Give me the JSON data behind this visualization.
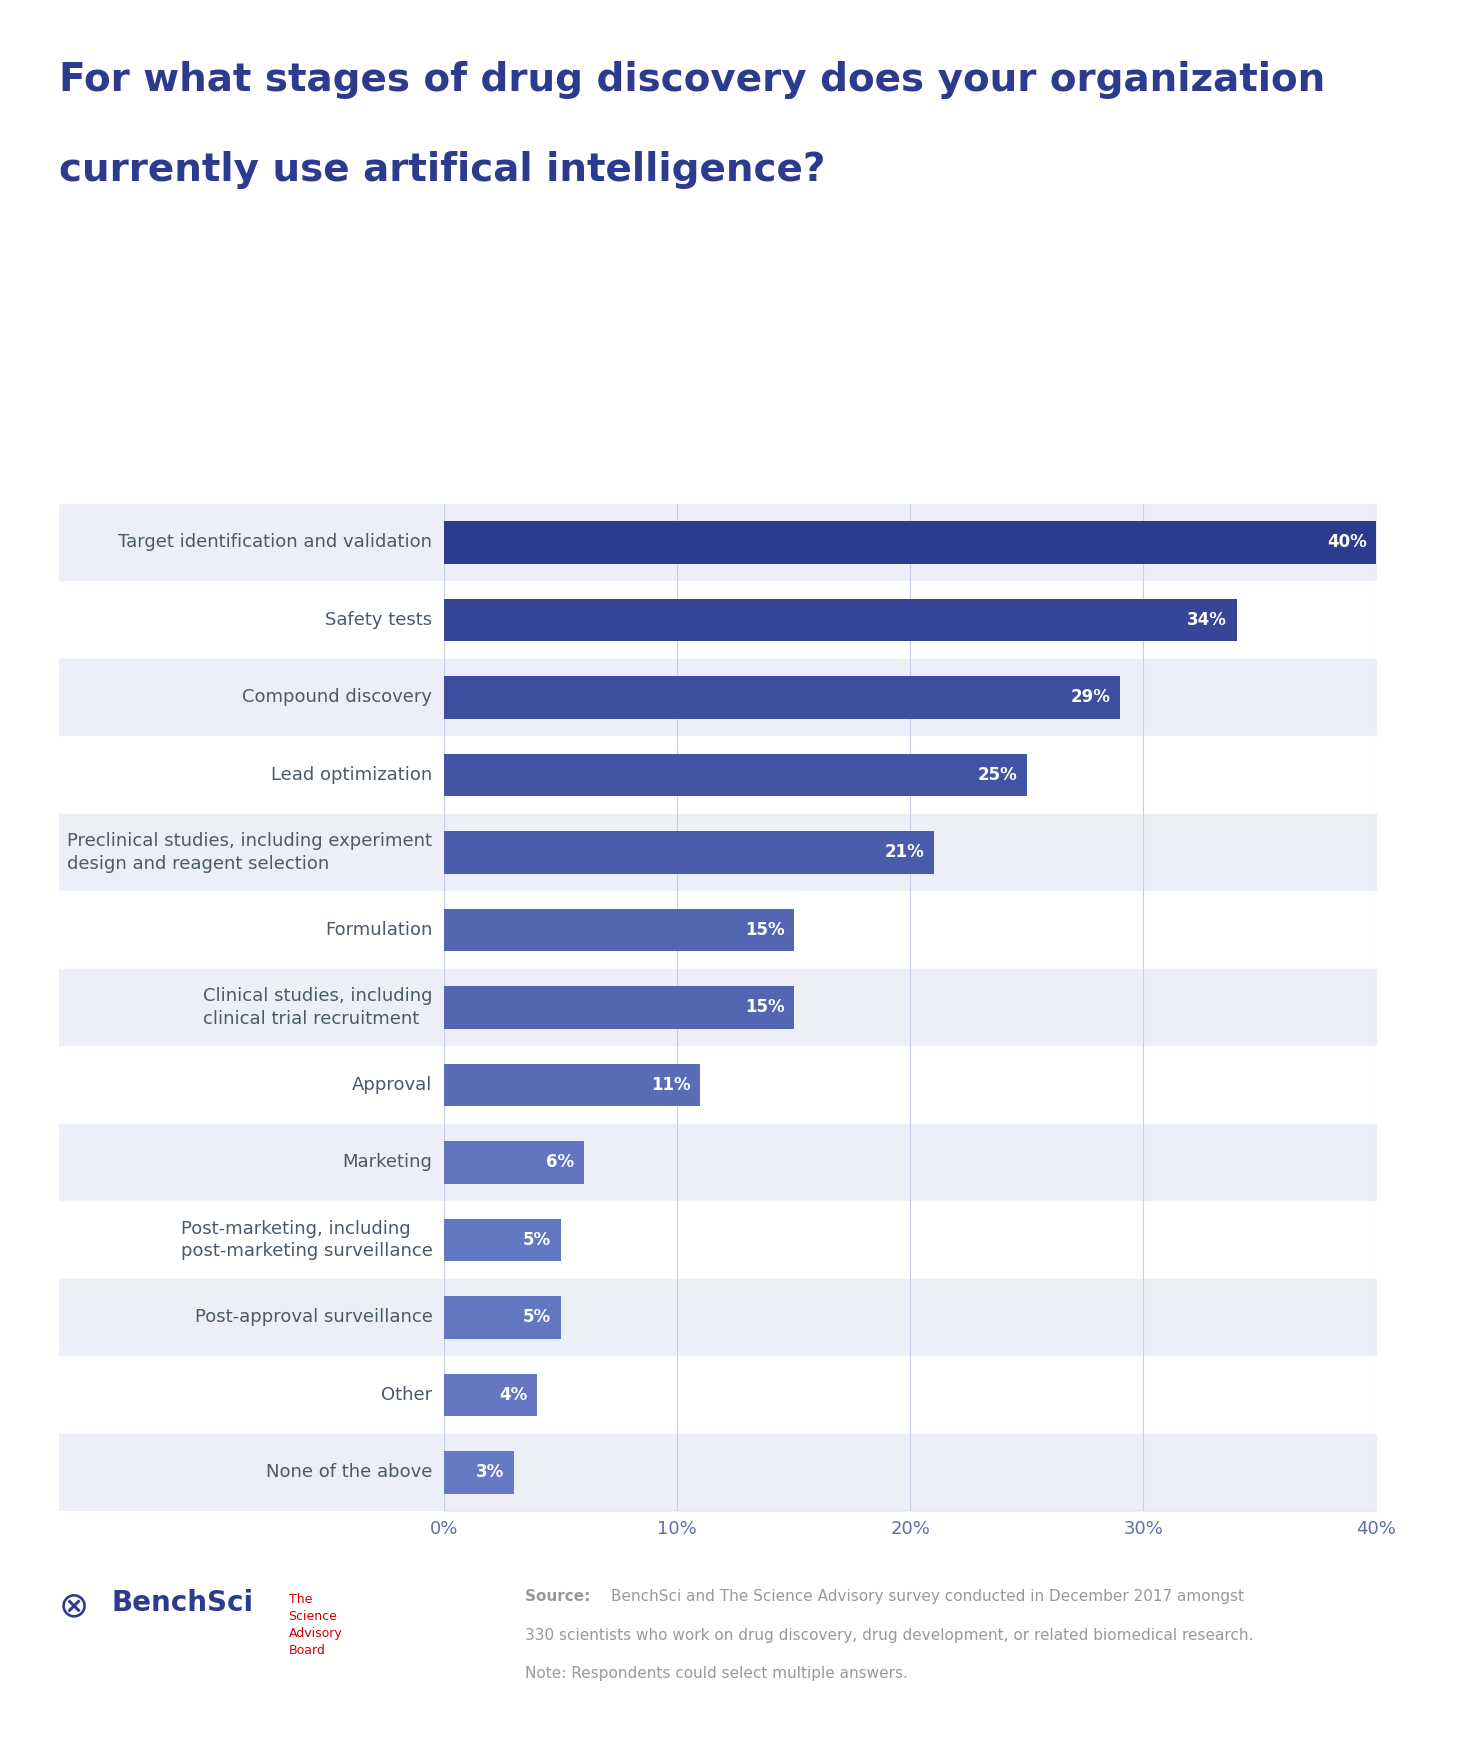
{
  "title_line1": "For what stages of drug discovery does your organization",
  "title_line2": "currently use artifical intelligence?",
  "title_color": "#2d3b8e",
  "title_fontsize": 28,
  "categories": [
    "Target identification and validation",
    "Safety tests",
    "Compound discovery",
    "Lead optimization",
    "Preclinical studies, including experiment\ndesign and reagent selection",
    "Formulation",
    "Clinical studies, including\nclinical trial recruitment",
    "Approval",
    "Marketing",
    "Post-marketing, including\npost-marketing surveillance",
    "Post-approval surveillance",
    "Other",
    "None of the above"
  ],
  "values": [
    40,
    34,
    29,
    25,
    21,
    15,
    15,
    11,
    6,
    5,
    5,
    4,
    3
  ],
  "background_color": "#ffffff",
  "row_shaded_color": "#eceef8",
  "row_white_color": "#ffffff",
  "shaded_rows": [
    0,
    2,
    4,
    6,
    8,
    10,
    12
  ],
  "label_color": "#4a5a6a",
  "label_fontsize": 13,
  "value_label_fontsize": 12,
  "axis_label_color": "#5b6fac",
  "axis_tick_fontsize": 13,
  "grid_color": "#c8cde8",
  "xlim": [
    0,
    40
  ],
  "xticks": [
    0,
    10,
    20,
    30,
    40
  ],
  "xtick_labels": [
    "0%",
    "10%",
    "20%",
    "30%",
    "40%"
  ],
  "footer_text_color": "#999999",
  "footer_fontsize": 11,
  "note_text": "Note: Respondents could select multiple answers."
}
